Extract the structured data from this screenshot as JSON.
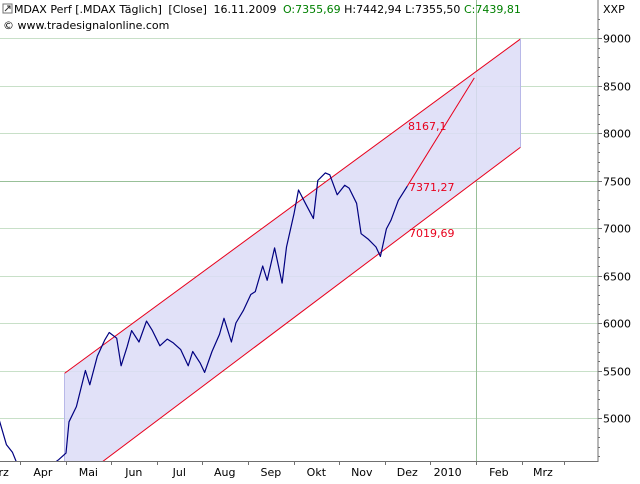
{
  "header": {
    "symbol_text": "MDAX Perf [.MDAX  Täglich]",
    "mode": "[Close]",
    "date": "16.11.2009",
    "open": "O:7355,69",
    "high": "H:7442,94",
    "low": "L:7355,50",
    "close": "C:7439,81",
    "copyright": "© www.tradesignalonline.com",
    "icon": "window-toggle-icon"
  },
  "colors": {
    "channel_line": "#e8001c",
    "channel_fill": "#dcdcf7",
    "price_line": "#000080",
    "grid": "#c8e0c8",
    "positive": "#008000",
    "negative": "#e8001c",
    "annotation": "#e8001c"
  },
  "chart_data": {
    "type": "line",
    "title": "MDAX Perf [.MDAX  Täglich] [Close]",
    "xlabel": "",
    "ylabel": "XXP",
    "x_ticks": [
      "Mrz",
      "Apr",
      "Mai",
      "Jun",
      "Jul",
      "Aug",
      "Sep",
      "Okt",
      "Nov",
      "Dez",
      "2010",
      "Feb",
      "Mrz"
    ],
    "y_ticks": [
      5000,
      5500,
      6000,
      6500,
      7000,
      7500,
      8000,
      8500,
      9000
    ],
    "ylim": [
      4540,
      9270
    ],
    "grid": true,
    "highlight_levels": [
      7500
    ],
    "highlight_dates": [
      "2010-01-01"
    ],
    "series": [
      {
        "type": "line",
        "x": [
          "2009-02-15",
          "2009-02-20",
          "2009-02-24",
          "2009-02-27",
          "2009-03-03",
          "2009-03-06",
          "2009-03-09",
          "2009-03-13",
          "2009-03-17",
          "2009-03-20",
          "2009-03-24",
          "2009-03-27",
          "2009-04-01",
          "2009-04-03",
          "2009-04-08",
          "2009-04-14",
          "2009-04-17",
          "2009-04-22",
          "2009-04-27",
          "2009-04-30",
          "2009-05-05",
          "2009-05-08",
          "2009-05-12",
          "2009-05-15",
          "2009-05-20",
          "2009-05-25",
          "2009-05-29",
          "2009-06-03",
          "2009-06-08",
          "2009-06-12",
          "2009-06-17",
          "2009-06-22",
          "2009-06-25",
          "2009-06-30",
          "2009-07-03",
          "2009-07-08",
          "2009-07-13",
          "2009-07-16",
          "2009-07-21",
          "2009-07-24",
          "2009-07-29",
          "2009-08-03",
          "2009-08-06",
          "2009-08-11",
          "2009-08-14",
          "2009-08-19",
          "2009-08-24",
          "2009-08-27",
          "2009-09-01",
          "2009-09-04",
          "2009-09-09",
          "2009-09-14",
          "2009-09-17",
          "2009-09-22",
          "2009-09-25",
          "2009-09-30",
          "2009-10-05",
          "2009-10-08",
          "2009-10-13",
          "2009-10-16",
          "2009-10-21",
          "2009-10-26",
          "2009-10-29",
          "2009-11-02",
          "2009-11-05",
          "2009-11-10",
          "2009-11-16"
        ],
        "y": [
          4990,
          4720,
          4640,
          4520,
          4450,
          4320,
          4300,
          4380,
          4410,
          4500,
          4510,
          4560,
          4630,
          4960,
          5120,
          5500,
          5350,
          5650,
          5820,
          5900,
          5840,
          5550,
          5750,
          5920,
          5800,
          6020,
          5920,
          5760,
          5830,
          5790,
          5720,
          5550,
          5700,
          5580,
          5480,
          5700,
          5880,
          6050,
          5800,
          6000,
          6130,
          6300,
          6330,
          6600,
          6450,
          6790,
          6420,
          6800,
          7150,
          7400,
          7250,
          7100,
          7500,
          7580,
          7560,
          7350,
          7450,
          7420,
          7260,
          6940,
          6880,
          6800,
          6700,
          6990,
          7080,
          7290,
          7440
        ]
      }
    ],
    "channel": {
      "upper": {
        "start": {
          "x": "2009-03-31",
          "y": 5470
        },
        "end": {
          "x": "2010-01-31",
          "y": 8990
        }
      },
      "lower": {
        "start": {
          "x": "2009-03-31",
          "y": 4240
        },
        "end": {
          "x": "2010-01-31",
          "y": 7850
        }
      }
    },
    "projection": {
      "start": {
        "x": "2009-11-16",
        "y": 7440
      },
      "end": {
        "x": "2009-12-31",
        "y": 8580
      }
    },
    "annotations": [
      {
        "label": "8167,1",
        "value": 8167.1
      },
      {
        "label": "7371,27",
        "value": 7371.27
      },
      {
        "label": "7019,69",
        "value": 7019.69
      }
    ]
  }
}
